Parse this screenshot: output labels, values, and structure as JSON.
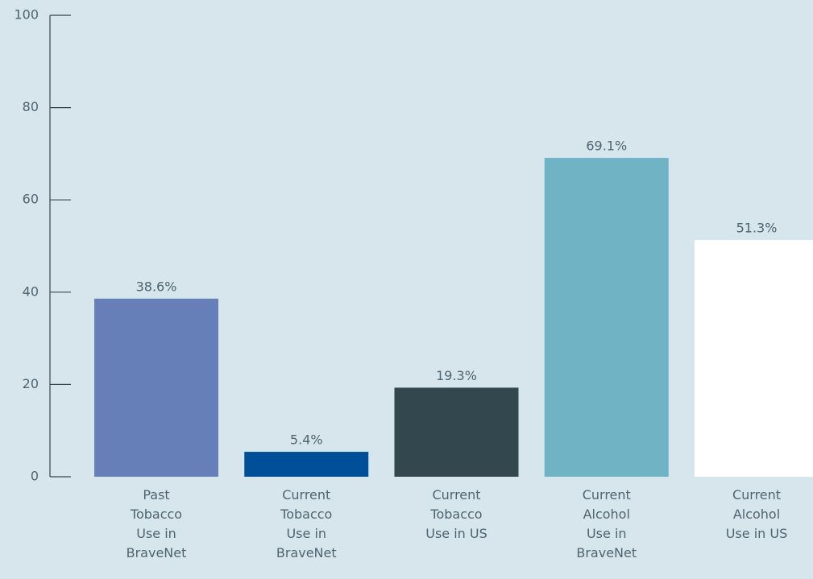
{
  "chart_data": {
    "type": "bar",
    "categories": [
      "Past Tobacco Use in BraveNet",
      "Current Tobacco Use in BraveNet",
      "Current Tobacco Use in US",
      "Current Alcohol Use in BraveNet",
      "Current Alcohol Use in US"
    ],
    "values": [
      38.6,
      5.4,
      19.3,
      69.1,
      51.3
    ],
    "value_labels": [
      "38.6%",
      "5.4%",
      "19.3%",
      "69.1%",
      "51.3%"
    ],
    "colors": [
      "#677fb8",
      "#004f98",
      "#33474e",
      "#6fb3c4",
      "#ffffff"
    ],
    "ylim": [
      0,
      100
    ],
    "yticks": [
      0,
      20,
      40,
      60,
      80,
      100
    ],
    "grid": false
  }
}
